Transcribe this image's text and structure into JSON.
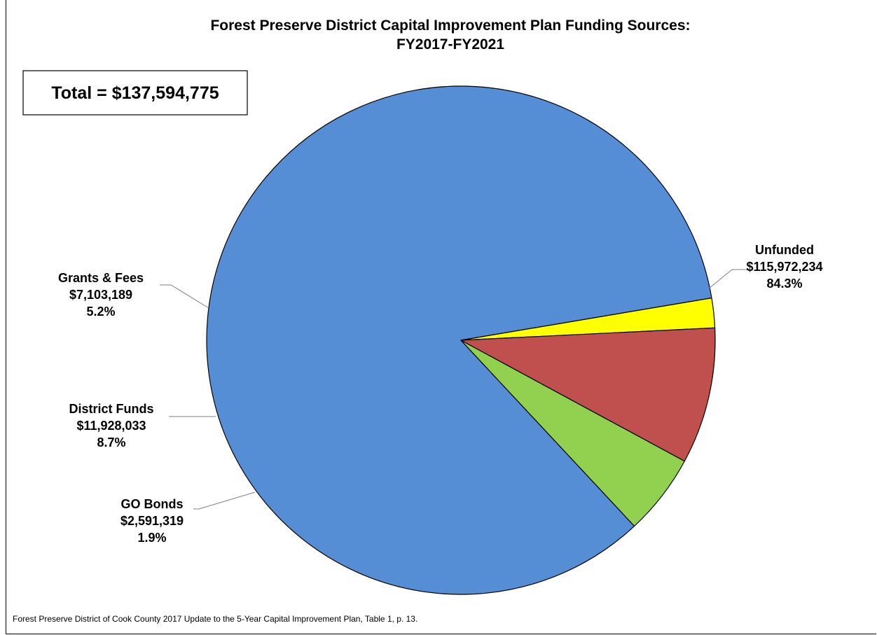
{
  "chart_data": {
    "type": "pie",
    "title": "Forest Preserve District Capital Improvement Plan Funding Sources:",
    "subtitle": "FY2017-FY2021",
    "total_label": "Total = $137,594,775",
    "source_note": "Forest Preserve District of Cook County 2017 Update to the 5-Year Capital Improvement Plan, Table 1, p. 13.",
    "slices": [
      {
        "name": "Unfunded",
        "value": 115972234,
        "value_label": "$115,972,234",
        "percent_label": "84.3%",
        "color": "#558ed5"
      },
      {
        "name": "GO Bonds",
        "value": 2591319,
        "value_label": "$2,591,319",
        "percent_label": "1.9%",
        "color": "#ffff00"
      },
      {
        "name": "District Funds",
        "value": 11928033,
        "value_label": "$11,928,033",
        "percent_label": "8.7%",
        "color": "#c0504d"
      },
      {
        "name": "Grants & Fees",
        "value": 7103189,
        "value_label": "$7,103,189",
        "percent_label": "5.2%",
        "color": "#92d050"
      }
    ]
  }
}
